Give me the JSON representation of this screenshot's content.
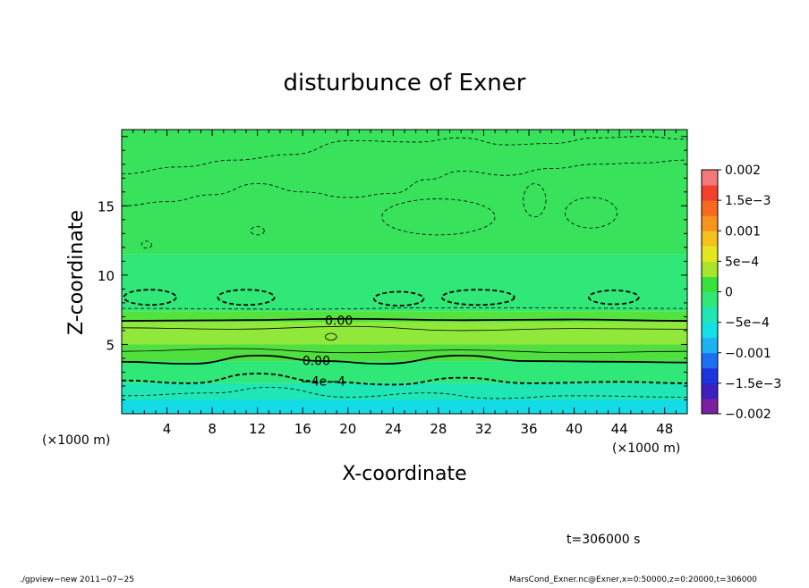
{
  "chart_data": {
    "type": "heatmap",
    "title": "disturbunce of Exner",
    "xlabel": "X-coordinate",
    "ylabel": "Z-coordinate",
    "x_unit": "(×1000 m)",
    "y_unit": "(×1000 m)",
    "xlim": [
      0,
      50
    ],
    "ylim": [
      0,
      20.5
    ],
    "x_ticks": [
      "4",
      "8",
      "12",
      "16",
      "20",
      "24",
      "28",
      "32",
      "36",
      "40",
      "44",
      "48"
    ],
    "x_tick_values": [
      4,
      8,
      12,
      16,
      20,
      24,
      28,
      32,
      36,
      40,
      44,
      48
    ],
    "y_ticks": [
      "5",
      "10",
      "15"
    ],
    "y_tick_values": [
      5,
      10,
      15
    ],
    "time_label": "t=306000 s",
    "colorbar": {
      "labels": [
        "0.002",
        "1.5e−3",
        "0.001",
        "5e−4",
        "0",
        "−5e−4",
        "−0.001",
        "−1.5e−3",
        "−0.002"
      ],
      "min": -0.002,
      "max": 0.002,
      "colors": [
        "#7b1fa2",
        "#3d1fbf",
        "#1a35e0",
        "#1f6ff5",
        "#1fb1f5",
        "#14e0e6",
        "#1ee6b4",
        "#2fe878",
        "#38e23c",
        "#a8e62d",
        "#e6e620",
        "#f5c21d",
        "#f7941d",
        "#f56a1f",
        "#f2402c",
        "#f47a7a"
      ]
    },
    "zones": [
      {
        "z_top": 20.5,
        "z_bot": 11.5,
        "color": "#38e25a"
      },
      {
        "z_top": 11.5,
        "z_bot": 7.4,
        "color": "#2fe878"
      },
      {
        "z_top": 7.4,
        "z_bot": 6.6,
        "color": "#54e23c"
      },
      {
        "z_top": 6.6,
        "z_bot": 5.0,
        "color": "#8fe83a"
      },
      {
        "z_top": 5.0,
        "z_bot": 3.8,
        "color": "#4fe03f"
      },
      {
        "z_top": 3.8,
        "z_bot": 2.2,
        "color": "#2fe878"
      },
      {
        "z_top": 2.2,
        "z_bot": 1.0,
        "color": "#1ee6b4"
      },
      {
        "z_top": 1.0,
        "z_bot": 0.0,
        "color": "#14dce6"
      }
    ],
    "contour_labels": [
      {
        "text": "0.00",
        "x": 19.2,
        "z": 6.75
      },
      {
        "text": "0.00",
        "x": 17.2,
        "z": 3.85
      },
      {
        "text": "−4e−4",
        "x": 17.8,
        "z": 2.35
      }
    ],
    "contours": [
      {
        "style": "solid-thick",
        "points": [
          [
            0,
            6.7
          ],
          [
            10,
            6.75
          ],
          [
            20,
            6.85
          ],
          [
            30,
            6.75
          ],
          [
            40,
            6.8
          ],
          [
            50,
            6.7
          ]
        ]
      },
      {
        "style": "solid-thin",
        "points": [
          [
            0,
            6.2
          ],
          [
            10,
            6.1
          ],
          [
            20,
            6.3
          ],
          [
            30,
            6.0
          ],
          [
            40,
            6.15
          ],
          [
            50,
            6.1
          ]
        ]
      },
      {
        "style": "solid-thin",
        "points": [
          [
            0,
            4.5
          ],
          [
            10,
            4.7
          ],
          [
            20,
            4.4
          ],
          [
            30,
            4.6
          ],
          [
            40,
            4.4
          ],
          [
            50,
            4.5
          ]
        ]
      },
      {
        "style": "solid-thick",
        "points": [
          [
            0,
            3.75
          ],
          [
            6,
            3.6
          ],
          [
            12,
            4.2
          ],
          [
            18,
            3.8
          ],
          [
            23,
            3.6
          ],
          [
            30,
            4.2
          ],
          [
            36,
            3.8
          ],
          [
            44,
            3.75
          ],
          [
            50,
            3.7
          ]
        ]
      },
      {
        "style": "dashed-thick",
        "points": [
          [
            0,
            2.4
          ],
          [
            6,
            2.2
          ],
          [
            12,
            2.9
          ],
          [
            18,
            2.3
          ],
          [
            24,
            2.1
          ],
          [
            30,
            2.6
          ],
          [
            36,
            2.2
          ],
          [
            44,
            2.3
          ],
          [
            50,
            2.2
          ]
        ]
      },
      {
        "style": "dashed-thin",
        "points": [
          [
            0,
            1.3
          ],
          [
            8,
            1.5
          ],
          [
            13,
            1.9
          ],
          [
            20,
            1.2
          ],
          [
            27,
            1.5
          ],
          [
            33,
            1.1
          ],
          [
            40,
            1.3
          ],
          [
            50,
            1.2
          ]
        ]
      },
      {
        "style": "dashed-thin",
        "points": [
          [
            0,
            7.6
          ],
          [
            15,
            7.55
          ],
          [
            30,
            7.65
          ],
          [
            50,
            7.6
          ]
        ]
      },
      {
        "style": "dashed-thin",
        "points": [
          [
            0,
            17.3
          ],
          [
            5,
            17.8
          ],
          [
            10,
            18.3
          ],
          [
            15,
            18.7
          ],
          [
            20,
            19.7
          ],
          [
            26,
            19.6
          ],
          [
            30,
            19.9
          ],
          [
            34,
            19.4
          ],
          [
            38,
            19.5
          ],
          [
            42,
            19.9
          ],
          [
            46,
            20.0
          ],
          [
            50,
            19.8
          ]
        ]
      },
      {
        "style": "dashed-thin",
        "points": [
          [
            0,
            15.0
          ],
          [
            4,
            15.3
          ],
          [
            8,
            15.8
          ],
          [
            12,
            16.6
          ],
          [
            16,
            16.0
          ],
          [
            20,
            15.6
          ],
          [
            24,
            15.9
          ],
          [
            27,
            16.9
          ],
          [
            30,
            17.5
          ],
          [
            34,
            17.2
          ],
          [
            38,
            17.7
          ],
          [
            42,
            18.0
          ],
          [
            46,
            18.1
          ],
          [
            50,
            18.3
          ]
        ]
      }
    ],
    "loops": [
      {
        "style": "dashed-thick",
        "cx": 2.5,
        "cz": 8.4,
        "rx": 2.3,
        "rz": 0.55
      },
      {
        "style": "dashed-thick",
        "cx": 11.0,
        "cz": 8.4,
        "rx": 2.5,
        "rz": 0.55
      },
      {
        "style": "dashed-thick",
        "cx": 24.5,
        "cz": 8.3,
        "rx": 2.2,
        "rz": 0.5
      },
      {
        "style": "dashed-thick",
        "cx": 31.5,
        "cz": 8.4,
        "rx": 3.2,
        "rz": 0.55
      },
      {
        "style": "dashed-thick",
        "cx": 43.5,
        "cz": 8.4,
        "rx": 2.2,
        "rz": 0.5
      },
      {
        "style": "solid-thin",
        "cx": 18.5,
        "cz": 5.55,
        "rx": 0.5,
        "rz": 0.25
      },
      {
        "style": "dashed-thin",
        "cx": 12.0,
        "cz": 13.2,
        "rx": 0.6,
        "rz": 0.3
      },
      {
        "style": "dashed-thin",
        "cx": 2.2,
        "cz": 12.2,
        "rx": 0.45,
        "rz": 0.25
      },
      {
        "style": "dashed-thin",
        "cx": 28.0,
        "cz": 14.2,
        "rx": 5.0,
        "rz": 1.3
      },
      {
        "style": "dashed-thin",
        "cx": 41.5,
        "cz": 14.5,
        "rx": 2.3,
        "rz": 1.1
      },
      {
        "style": "dashed-thin",
        "cx": 36.5,
        "cz": 15.4,
        "rx": 1.0,
        "rz": 1.2
      }
    ]
  },
  "footer": {
    "left": "./gpview−new   2011−07−25",
    "right": "MarsCond_Exner.nc@Exner,x=0:50000,z=0:20000,t=306000"
  }
}
